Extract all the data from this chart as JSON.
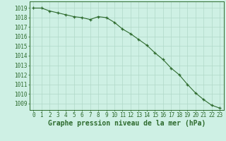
{
  "x": [
    0,
    1,
    2,
    3,
    4,
    5,
    6,
    7,
    8,
    9,
    10,
    11,
    12,
    13,
    14,
    15,
    16,
    17,
    18,
    19,
    20,
    21,
    22,
    23
  ],
  "y": [
    1019.0,
    1019.0,
    1018.7,
    1018.5,
    1018.3,
    1018.1,
    1018.0,
    1017.8,
    1018.1,
    1018.0,
    1017.5,
    1016.8,
    1016.3,
    1015.7,
    1015.1,
    1014.3,
    1013.6,
    1012.7,
    1012.0,
    1011.0,
    1010.1,
    1009.4,
    1008.8,
    1008.5
  ],
  "line_color": "#2d6a2d",
  "marker_color": "#2d6a2d",
  "bg_color": "#cef0e4",
  "grid_color": "#b0d8c8",
  "xlabel": "Graphe pression niveau de la mer (hPa)",
  "ylabel_ticks": [
    1009,
    1010,
    1011,
    1012,
    1013,
    1014,
    1015,
    1016,
    1017,
    1018,
    1019
  ],
  "ylim": [
    1008.3,
    1019.7
  ],
  "xlim": [
    -0.5,
    23.5
  ],
  "tick_fontsize": 5.5,
  "xlabel_fontsize": 7.0
}
